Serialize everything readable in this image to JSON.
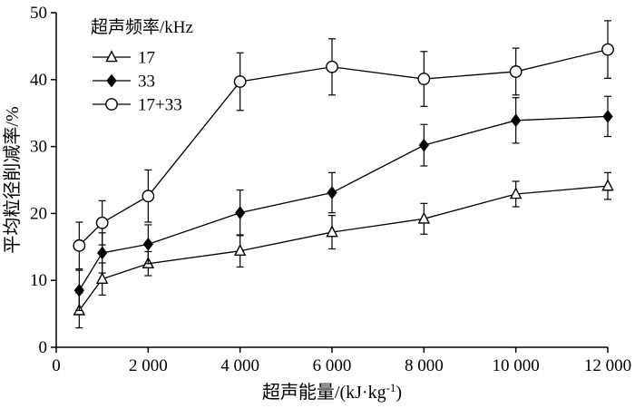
{
  "figure": {
    "background": "#ffffff",
    "axis_color": "#000000"
  },
  "chart_data": {
    "type": "line",
    "title": "",
    "xlabel_prefix": "超声能量/(kJ·kg",
    "xlabel_sup": "-1",
    "xlabel_suffix": ")",
    "ylabel": "平均粒径削减率/%",
    "xlim": [
      0,
      12000
    ],
    "ylim": [
      0,
      50
    ],
    "grid": false,
    "x_ticks": [
      0,
      2000,
      4000,
      6000,
      8000,
      10000,
      12000
    ],
    "x_tick_labels": [
      "0",
      "2 000",
      "4 000",
      "6 000",
      "8 000",
      "10 000",
      "12 000"
    ],
    "y_ticks": [
      0,
      10,
      20,
      30,
      40,
      50
    ],
    "y_tick_labels": [
      "0",
      "10",
      "20",
      "30",
      "40",
      "50"
    ],
    "legend": {
      "title": "超声频率/kHz",
      "position": "top-left"
    },
    "x": [
      500,
      1000,
      2000,
      4000,
      6000,
      8000,
      10000,
      12000
    ],
    "series": [
      {
        "name": "17",
        "marker": "triangle-open",
        "color": "#000000",
        "values": [
          5.5,
          10.2,
          12.5,
          14.4,
          17.2,
          19.2,
          22.9,
          24.1
        ],
        "errors": [
          2.6,
          2.4,
          1.8,
          2.4,
          2.5,
          2.3,
          1.9,
          2.0
        ]
      },
      {
        "name": "33",
        "marker": "diamond-filled",
        "color": "#000000",
        "values": [
          8.5,
          14.1,
          15.4,
          20.1,
          23.1,
          30.2,
          33.9,
          34.5
        ],
        "errors": [
          3.0,
          3.0,
          2.9,
          3.4,
          3.0,
          3.1,
          3.4,
          3.0
        ]
      },
      {
        "name": "17+33",
        "marker": "circle-open",
        "color": "#000000",
        "values": [
          15.2,
          18.6,
          22.6,
          39.7,
          41.9,
          40.1,
          41.2,
          44.5
        ],
        "errors": [
          3.5,
          3.3,
          3.9,
          4.3,
          4.2,
          4.1,
          3.5,
          4.3
        ]
      }
    ]
  }
}
